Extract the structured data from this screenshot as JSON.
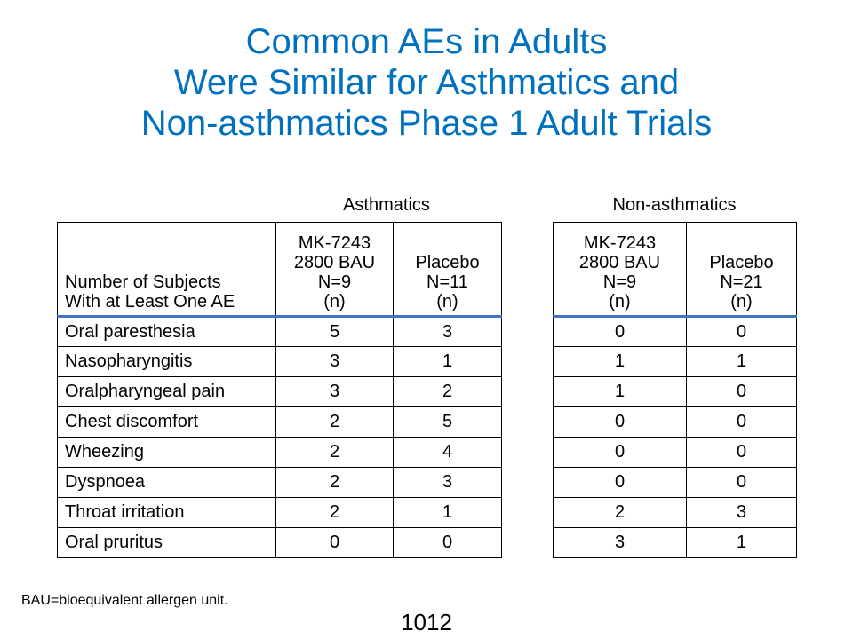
{
  "title": {
    "line1": "Common AEs in Adults",
    "line2": "Were Similar for Asthmatics and",
    "line3": "Non-asthmatics Phase 1 Adult Trials"
  },
  "groups": {
    "asthmatics": "Asthmatics",
    "non_asthmatics": "Non-asthmatics"
  },
  "header": {
    "row_label_line1": "Number of Subjects",
    "row_label_line2": "With at Least One AE",
    "asth_active": [
      "MK-7243",
      "2800 BAU",
      "N=9",
      "(n)"
    ],
    "asth_placebo": [
      "Placebo",
      "N=11",
      "(n)"
    ],
    "non_active": [
      "MK-7243",
      "2800 BAU",
      "N=9",
      "(n)"
    ],
    "non_placebo": [
      "Placebo",
      "N=21",
      "(n)"
    ]
  },
  "rows": [
    {
      "label": "Oral paresthesia",
      "asth_mk": "5",
      "asth_pbo": "3",
      "non_mk": "0",
      "non_pbo": "0"
    },
    {
      "label": "Nasopharyngitis",
      "asth_mk": "3",
      "asth_pbo": "1",
      "non_mk": "1",
      "non_pbo": "1"
    },
    {
      "label": "Oralpharyngeal pain",
      "asth_mk": "3",
      "asth_pbo": "2",
      "non_mk": "1",
      "non_pbo": "0"
    },
    {
      "label": "Chest discomfort",
      "asth_mk": "2",
      "asth_pbo": "5",
      "non_mk": "0",
      "non_pbo": "0"
    },
    {
      "label": "Wheezing",
      "asth_mk": "2",
      "asth_pbo": "4",
      "non_mk": "0",
      "non_pbo": "0"
    },
    {
      "label": "Dyspnoea",
      "asth_mk": "2",
      "asth_pbo": "3",
      "non_mk": "0",
      "non_pbo": "0"
    },
    {
      "label": "Throat irritation",
      "asth_mk": "2",
      "asth_pbo": "1",
      "non_mk": "2",
      "non_pbo": "3"
    },
    {
      "label": "Oral pruritus",
      "asth_mk": "0",
      "asth_pbo": "0",
      "non_mk": "3",
      "non_pbo": "1"
    }
  ],
  "footnote": "BAU=bioequivalent allergen unit.",
  "page_number": "1012",
  "colors": {
    "title": "#0070c0",
    "header_rule": "#4472c4"
  }
}
